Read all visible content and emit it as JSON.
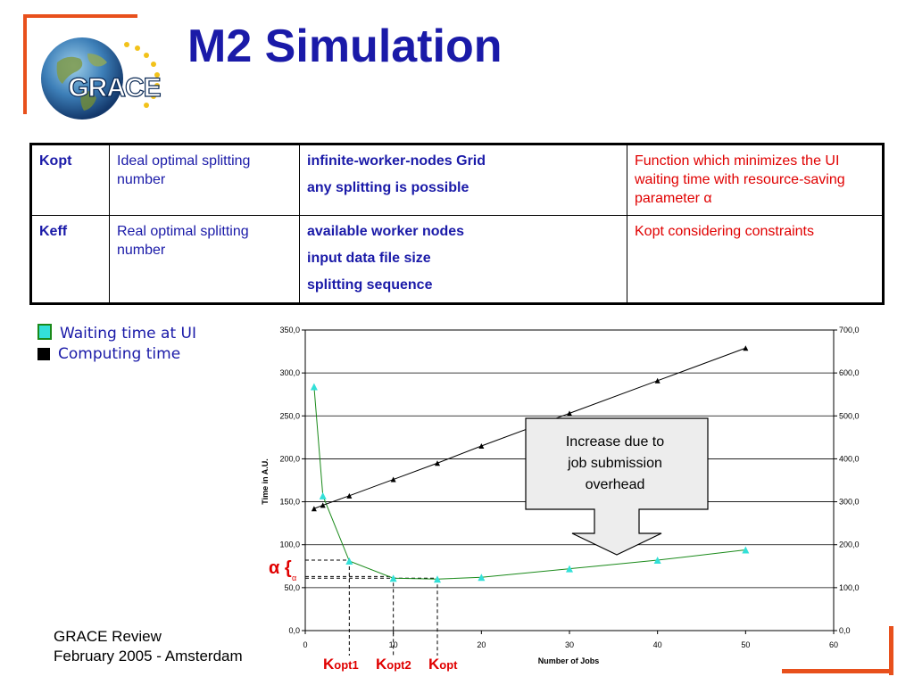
{
  "slide": {
    "title": "M2 Simulation",
    "logo_text": "GRACE",
    "accent_color": "#e8501c",
    "title_color": "#1a1aa8"
  },
  "table": {
    "rows": [
      {
        "key": "Kopt",
        "desc": "Ideal optimal splitting number",
        "conditions": [
          "infinite-worker-nodes Grid",
          "any splitting is possible"
        ],
        "fn": "Function which minimizes the UI waiting time with resource-saving parameter α"
      },
      {
        "key": "Keff",
        "desc": "Real optimal splitting number",
        "conditions": [
          "available worker nodes",
          "input data file size",
          "splitting sequence"
        ],
        "fn": "Kopt considering constraints"
      }
    ]
  },
  "legend": [
    {
      "label": "Waiting time at UI",
      "color": "#33e0d8"
    },
    {
      "label": "Computing time",
      "color": "#000000"
    }
  ],
  "callout": {
    "lines": [
      "Increase due to",
      "job submission",
      "overhead"
    ]
  },
  "annotations": {
    "alpha": "α {",
    "alpha_sub": "α",
    "kopt1": {
      "k": "K",
      "sub": "opt1"
    },
    "kopt2": {
      "k": "K",
      "sub": "opt2"
    },
    "kopt": {
      "k": "K",
      "sub": "opt"
    }
  },
  "footer": {
    "line1": "GRACE Review",
    "line2": "February 2005 - Amsterdam"
  },
  "chart_data": {
    "type": "line",
    "ylabel": "Time in A.U.",
    "xlabel": "Number of Jobs",
    "xlim": [
      0,
      60
    ],
    "ylim_left": [
      0,
      350
    ],
    "ylim_right": [
      0,
      700
    ],
    "x_ticks": [
      "0",
      "10",
      "20",
      "30",
      "40",
      "50",
      "60"
    ],
    "y_ticks_left": [
      "0,0",
      "50,0",
      "100,0",
      "150,0",
      "200,0",
      "250,0",
      "300,0",
      "350,0"
    ],
    "y_ticks_right": [
      "0,0",
      "100,0",
      "200,0",
      "300,0",
      "400,0",
      "500,0",
      "600,0",
      "700,0"
    ],
    "grid": true,
    "series": [
      {
        "name": "Waiting time at UI",
        "axis": "left",
        "color": "#33e0d8",
        "line_color": "#1a8a1a",
        "marker": "triangle",
        "x": [
          1,
          2,
          5,
          10,
          15,
          20,
          30,
          40,
          50
        ],
        "y": [
          284,
          157,
          81,
          61,
          60,
          62,
          72,
          82,
          94
        ]
      },
      {
        "name": "Computing time",
        "axis": "left",
        "color": "#000000",
        "line_color": "#000000",
        "marker": "triangle",
        "x": [
          1,
          2,
          5,
          10,
          15,
          20,
          30,
          40,
          50
        ],
        "y": [
          142,
          146,
          157,
          176,
          195,
          215,
          253,
          291,
          329
        ]
      }
    ],
    "reference_lines": {
      "alpha_levels": [
        82,
        63,
        61
      ],
      "k_positions": [
        5,
        10,
        15
      ]
    }
  }
}
